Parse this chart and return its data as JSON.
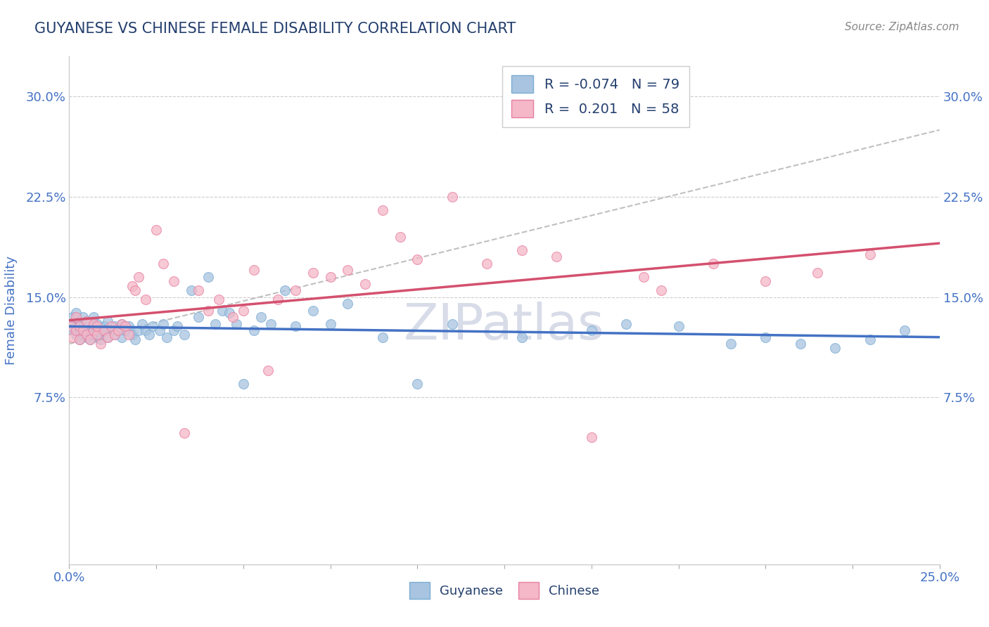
{
  "title": "GUYANESE VS CHINESE FEMALE DISABILITY CORRELATION CHART",
  "source": "Source: ZipAtlas.com",
  "ylabel": "Female Disability",
  "xlim": [
    0.0,
    0.25
  ],
  "ylim": [
    -0.05,
    0.33
  ],
  "xtick_positions": [
    0.0,
    0.025,
    0.05,
    0.075,
    0.1,
    0.125,
    0.15,
    0.175,
    0.2,
    0.225,
    0.25
  ],
  "xtick_labels": [
    "0.0%",
    "",
    "",
    "",
    "",
    "",
    "",
    "",
    "",
    "",
    "25.0%"
  ],
  "ytick_labels": [
    "7.5%",
    "15.0%",
    "22.5%",
    "30.0%"
  ],
  "yticks": [
    0.075,
    0.15,
    0.225,
    0.3
  ],
  "guyanese_color": "#a8c4e0",
  "guyanese_edge_color": "#7aadd4",
  "chinese_color": "#f4b8c8",
  "chinese_edge_color": "#e87fa0",
  "guyanese_line_color": "#4472c4",
  "chinese_line_color": "#d4506e",
  "dashed_line_color": "#d4506e",
  "background_color": "#ffffff",
  "R_guyanese": -0.074,
  "N_guyanese": 79,
  "R_chinese": 0.201,
  "N_chinese": 58,
  "title_color": "#243f6e",
  "axis_label_color": "#4472c4",
  "legend_text_color": "#243f6e",
  "watermark_color": "#d8dce8",
  "guyanese_x": [
    0.0005,
    0.001,
    0.001,
    0.002,
    0.002,
    0.002,
    0.003,
    0.003,
    0.003,
    0.004,
    0.004,
    0.004,
    0.005,
    0.005,
    0.005,
    0.006,
    0.006,
    0.007,
    0.007,
    0.007,
    0.008,
    0.008,
    0.008,
    0.009,
    0.009,
    0.01,
    0.01,
    0.011,
    0.011,
    0.012,
    0.013,
    0.013,
    0.014,
    0.015,
    0.015,
    0.016,
    0.017,
    0.018,
    0.019,
    0.02,
    0.021,
    0.022,
    0.023,
    0.024,
    0.026,
    0.027,
    0.028,
    0.03,
    0.031,
    0.033,
    0.035,
    0.037,
    0.04,
    0.042,
    0.044,
    0.046,
    0.048,
    0.05,
    0.053,
    0.055,
    0.058,
    0.062,
    0.065,
    0.07,
    0.075,
    0.08,
    0.09,
    0.1,
    0.11,
    0.13,
    0.15,
    0.16,
    0.175,
    0.19,
    0.2,
    0.21,
    0.22,
    0.23,
    0.24
  ],
  "guyanese_y": [
    0.13,
    0.125,
    0.135,
    0.128,
    0.122,
    0.138,
    0.125,
    0.13,
    0.118,
    0.122,
    0.128,
    0.135,
    0.12,
    0.125,
    0.132,
    0.118,
    0.125,
    0.122,
    0.128,
    0.135,
    0.12,
    0.125,
    0.13,
    0.122,
    0.118,
    0.128,
    0.125,
    0.12,
    0.132,
    0.125,
    0.128,
    0.122,
    0.125,
    0.13,
    0.12,
    0.125,
    0.128,
    0.122,
    0.118,
    0.125,
    0.13,
    0.125,
    0.122,
    0.128,
    0.125,
    0.13,
    0.12,
    0.125,
    0.128,
    0.122,
    0.155,
    0.135,
    0.165,
    0.13,
    0.14,
    0.138,
    0.13,
    0.085,
    0.125,
    0.135,
    0.13,
    0.155,
    0.128,
    0.14,
    0.13,
    0.145,
    0.12,
    0.085,
    0.13,
    0.12,
    0.125,
    0.13,
    0.128,
    0.115,
    0.12,
    0.115,
    0.112,
    0.118,
    0.125
  ],
  "chinese_x": [
    0.0005,
    0.001,
    0.002,
    0.002,
    0.003,
    0.003,
    0.004,
    0.005,
    0.005,
    0.006,
    0.007,
    0.007,
    0.008,
    0.008,
    0.009,
    0.01,
    0.011,
    0.012,
    0.013,
    0.014,
    0.015,
    0.016,
    0.017,
    0.018,
    0.019,
    0.02,
    0.022,
    0.025,
    0.027,
    0.03,
    0.033,
    0.037,
    0.04,
    0.043,
    0.047,
    0.05,
    0.053,
    0.057,
    0.06,
    0.065,
    0.07,
    0.075,
    0.08,
    0.085,
    0.09,
    0.095,
    0.1,
    0.11,
    0.12,
    0.13,
    0.14,
    0.15,
    0.165,
    0.17,
    0.185,
    0.2,
    0.215,
    0.23
  ],
  "chinese_y": [
    0.128,
    0.12,
    0.135,
    0.125,
    0.128,
    0.118,
    0.125,
    0.132,
    0.122,
    0.118,
    0.125,
    0.13,
    0.122,
    0.128,
    0.115,
    0.125,
    0.12,
    0.128,
    0.122,
    0.125,
    0.13,
    0.128,
    0.122,
    0.158,
    0.155,
    0.165,
    0.148,
    0.2,
    0.175,
    0.162,
    0.048,
    0.155,
    0.14,
    0.148,
    0.135,
    0.14,
    0.17,
    0.095,
    0.148,
    0.155,
    0.168,
    0.165,
    0.17,
    0.16,
    0.215,
    0.195,
    0.178,
    0.225,
    0.175,
    0.185,
    0.18,
    0.045,
    0.165,
    0.155,
    0.175,
    0.162,
    0.168,
    0.182
  ]
}
